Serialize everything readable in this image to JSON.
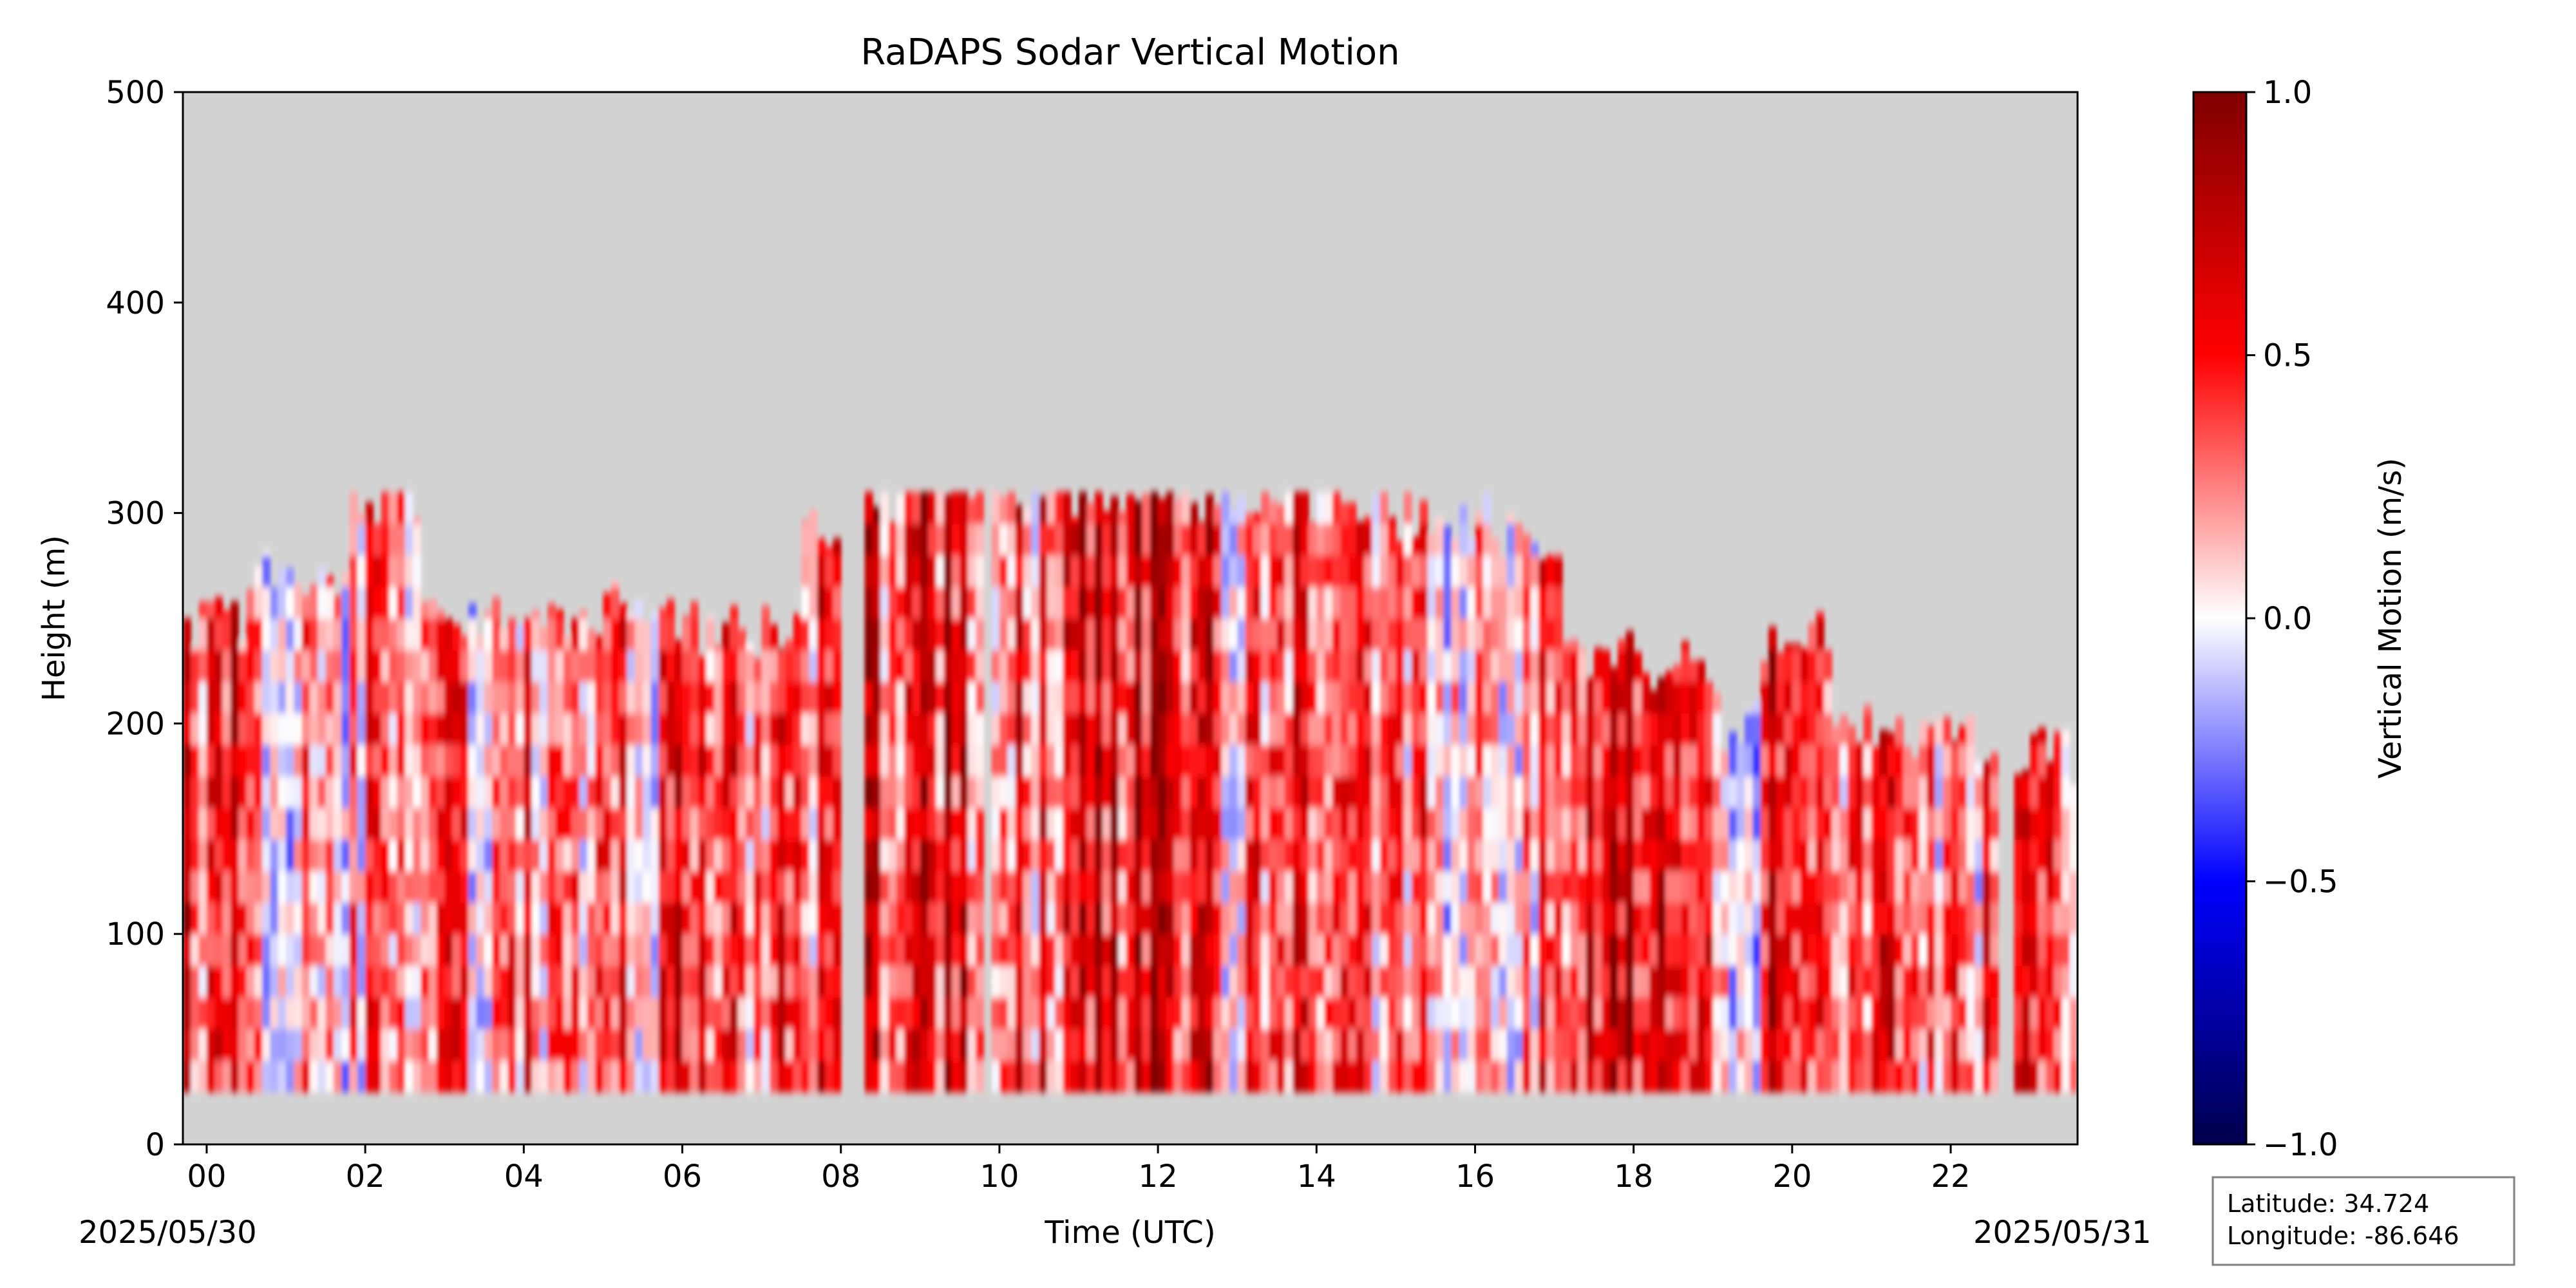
{
  "chart_data": {
    "type": "heatmap",
    "title": "RaDAPS Sodar Vertical Motion",
    "xlabel": "Time (UTC)",
    "ylabel": "Height (m)",
    "x_range_hours": [
      -0.3,
      23.6
    ],
    "xlim_dates": [
      "2025-05-29 23:42",
      "2025-05-30 23:36"
    ],
    "ylim": [
      0,
      500
    ],
    "x_ticks": [
      "00",
      "02",
      "04",
      "06",
      "08",
      "10",
      "12",
      "14",
      "16",
      "18",
      "20",
      "22"
    ],
    "y_ticks": [
      "0",
      "100",
      "200",
      "300",
      "400",
      "500"
    ],
    "start_date_label": "2025/05/30",
    "end_date_label": "2025/05/31",
    "background_color": "#d3d3d3",
    "colormap": "seismic",
    "colorbar": {
      "label": "Vertical Motion (m/s)",
      "range": [
        -1.0,
        1.0
      ],
      "ticks": [
        "1.0",
        "0.5",
        "0.0",
        "−0.5",
        "−1.0"
      ]
    },
    "height_range_m": [
      25,
      310
    ],
    "segments": [
      {
        "start_hour": -0.3,
        "end_hour": 0.5,
        "top": 250,
        "mean": 0.45
      },
      {
        "start_hour": 0.5,
        "end_hour": 1.8,
        "top": 270,
        "mean": 0.2
      },
      {
        "start_hour": 1.8,
        "end_hour": 2.7,
        "top": 310,
        "mean": 0.25
      },
      {
        "start_hour": 2.7,
        "end_hour": 4.5,
        "top": 245,
        "mean": 0.22
      },
      {
        "start_hour": 4.5,
        "end_hour": 6.0,
        "top": 255,
        "mean": 0.3
      },
      {
        "start_hour": 6.0,
        "end_hour": 7.5,
        "top": 245,
        "mean": 0.32
      },
      {
        "start_hour": 7.5,
        "end_hour": 8.0,
        "top": 295,
        "mean": 0.4
      },
      {
        "start_hour": 8.3,
        "end_hour": 9.8,
        "top": 310,
        "mean": 0.5
      },
      {
        "start_hour": 9.9,
        "end_hour": 10.8,
        "top": 310,
        "mean": 0.35
      },
      {
        "start_hour": 10.8,
        "end_hour": 12.8,
        "top": 310,
        "mean": 0.55
      },
      {
        "start_hour": 12.8,
        "end_hour": 14.5,
        "top": 310,
        "mean": 0.3
      },
      {
        "start_hour": 14.5,
        "end_hour": 16.2,
        "top": 300,
        "mean": 0.25
      },
      {
        "start_hour": 16.2,
        "end_hour": 17.1,
        "top": 290,
        "mean": 0.3
      },
      {
        "start_hour": 17.1,
        "end_hour": 19.0,
        "top": 230,
        "mean": 0.55
      },
      {
        "start_hour": 19.0,
        "end_hour": 19.6,
        "top": 200,
        "mean": 0.1
      },
      {
        "start_hour": 19.6,
        "end_hour": 20.5,
        "top": 240,
        "mean": 0.6
      },
      {
        "start_hour": 20.5,
        "end_hour": 22.6,
        "top": 195,
        "mean": 0.3
      },
      {
        "start_hour": 22.8,
        "end_hour": 23.6,
        "top": 185,
        "mean": 0.35
      }
    ],
    "annotation": {
      "latitude_label": "Latitude: 34.724",
      "longitude_label": "Longitude: -86.646"
    }
  }
}
